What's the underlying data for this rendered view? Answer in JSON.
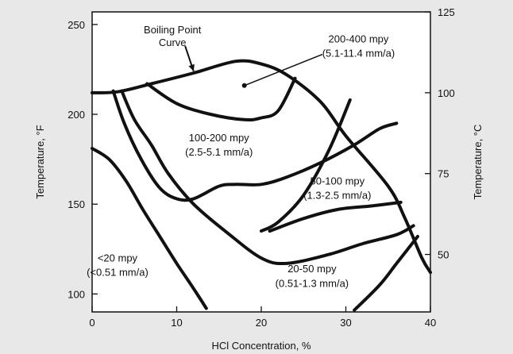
{
  "chart_data": {
    "type": "line",
    "title": "",
    "xlabel": "HCl Concentration, %",
    "ylabel": "Temperature, °F",
    "ylabel_right": "Temperature, °C",
    "xlim": [
      0,
      40
    ],
    "ylim": [
      90,
      257
    ],
    "grid": false,
    "x_ticks": [
      0,
      10,
      20,
      30,
      40
    ],
    "y_ticks_left": [
      100,
      150,
      200,
      250
    ],
    "y_ticks_right": [
      50,
      75,
      100,
      125
    ],
    "series": [
      {
        "name": "Boiling Point Curve",
        "points": [
          [
            0,
            212
          ],
          [
            3,
            212.5
          ],
          [
            7,
            217
          ],
          [
            12,
            223
          ],
          [
            17,
            229.5
          ],
          [
            20,
            228
          ],
          [
            23,
            222
          ],
          [
            27,
            207
          ],
          [
            30,
            188
          ],
          [
            35,
            160
          ],
          [
            37,
            142
          ],
          [
            39,
            120
          ],
          [
            40,
            112
          ]
        ]
      },
      {
        "name": "",
        "points": [
          [
            3.5,
            213
          ],
          [
            5,
            197
          ],
          [
            7,
            183
          ],
          [
            9,
            167
          ],
          [
            12,
            150
          ],
          [
            16,
            134
          ],
          [
            20,
            120
          ],
          [
            23,
            117
          ],
          [
            28,
            122
          ],
          [
            32,
            128
          ],
          [
            36,
            133
          ],
          [
            38,
            138
          ]
        ]
      },
      {
        "name": "",
        "points": [
          [
            2.5,
            213
          ],
          [
            3.8,
            195
          ],
          [
            5.8,
            175
          ],
          [
            8,
            159
          ],
          [
            10,
            153
          ],
          [
            12,
            153
          ],
          [
            15,
            160
          ],
          [
            17,
            161
          ],
          [
            20,
            161
          ],
          [
            23,
            165
          ],
          [
            27,
            173
          ],
          [
            31,
            183
          ],
          [
            34,
            192
          ],
          [
            36,
            195
          ]
        ]
      },
      {
        "name": "",
        "points": [
          [
            6.5,
            217
          ],
          [
            10,
            206
          ],
          [
            14,
            200
          ],
          [
            18,
            197
          ],
          [
            20,
            198
          ],
          [
            22,
            202
          ],
          [
            24,
            220
          ]
        ]
      },
      {
        "name": "",
        "points": [
          [
            0,
            181
          ],
          [
            2,
            175
          ],
          [
            4,
            163
          ],
          [
            6,
            147
          ],
          [
            8,
            132
          ],
          [
            10,
            117
          ],
          [
            12,
            103
          ],
          [
            13.5,
            92
          ]
        ]
      },
      {
        "name": "",
        "points": [
          [
            21,
            135
          ],
          [
            25,
            142
          ],
          [
            29,
            147
          ],
          [
            33,
            149
          ],
          [
            36.5,
            151
          ]
        ]
      },
      {
        "name": "",
        "points": [
          [
            31,
            91
          ],
          [
            34,
            105
          ],
          [
            36,
            117
          ],
          [
            38.5,
            132
          ]
        ]
      },
      {
        "name": "",
        "points": [
          [
            30.5,
            208
          ],
          [
            28,
            180
          ],
          [
            25,
            155
          ],
          [
            22,
            140
          ],
          [
            20,
            135
          ]
        ]
      }
    ],
    "annotations": [
      {
        "text": "Boiling Point",
        "x": 9.5,
        "y": 245
      },
      {
        "text": "Curve",
        "x": 9.5,
        "y": 238
      },
      {
        "text": "200-400 mpy",
        "x": 31.5,
        "y": 240
      },
      {
        "text": "(5.1-11.4 mm/a)",
        "x": 31.5,
        "y": 232
      },
      {
        "text": "100-200 mpy",
        "x": 15,
        "y": 185
      },
      {
        "text": "(2.5-5.1 mm/a)",
        "x": 15,
        "y": 177
      },
      {
        "text": "50-100 mpy",
        "x": 29,
        "y": 161
      },
      {
        "text": "(1.3-2.5 mm/a)",
        "x": 29,
        "y": 153
      },
      {
        "text": "20-50 mpy",
        "x": 26,
        "y": 112
      },
      {
        "text": "(0.51-1.3 mm/a)",
        "x": 26,
        "y": 104
      },
      {
        "text": "<20 mpy",
        "x": 3,
        "y": 118
      },
      {
        "text": "(<0.51 mm/a)",
        "x": 3,
        "y": 110
      }
    ],
    "pointer": {
      "label_at": [
        30.5,
        236
      ],
      "to": [
        18,
        216
      ]
    },
    "arrow": {
      "from": [
        11,
        238
      ],
      "to": [
        12,
        224
      ]
    }
  }
}
